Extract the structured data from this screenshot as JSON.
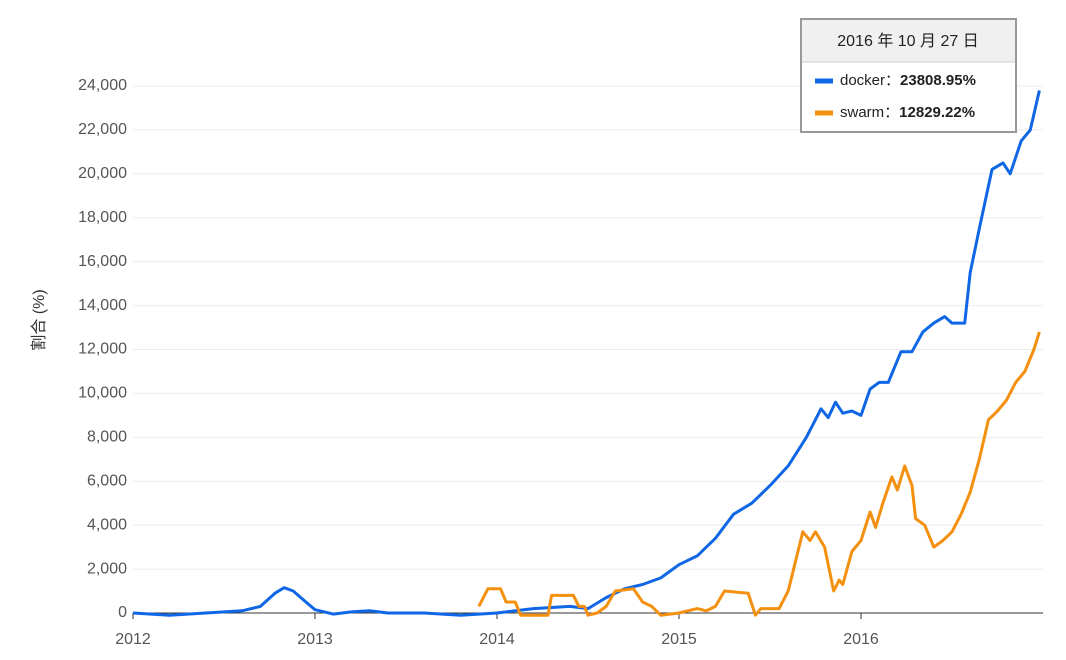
{
  "chart_data": {
    "type": "line",
    "y_label": "割合 (%)",
    "xlim": [
      2012,
      2017
    ],
    "xticks": [
      2012,
      2013,
      2014,
      2015,
      2016
    ],
    "ylim": [
      0,
      24000
    ],
    "yticks": [
      0,
      {
        "value": 2000,
        "label": "2,000"
      },
      {
        "value": 4000,
        "label": "4,000"
      },
      {
        "value": 6000,
        "label": "6,000"
      },
      {
        "value": 8000,
        "label": "8,000"
      },
      {
        "value": 10000,
        "label": "10,000"
      },
      {
        "value": 12000,
        "label": "12,000"
      },
      {
        "value": 14000,
        "label": "14,000"
      },
      {
        "value": 16000,
        "label": "16,000"
      },
      {
        "value": 18000,
        "label": "18,000"
      },
      {
        "value": 20000,
        "label": "20,000"
      },
      {
        "value": 22000,
        "label": "22,000"
      },
      {
        "value": 24000,
        "label": "24,000"
      }
    ],
    "grid": true,
    "series": [
      {
        "name": "docker",
        "color": "#0f67e6",
        "x": [
          2012.0,
          2012.2,
          2012.4,
          2012.6,
          2012.7,
          2012.78,
          2012.83,
          2012.88,
          2012.95,
          2013.0,
          2013.1,
          2013.2,
          2013.3,
          2013.4,
          2013.6,
          2013.8,
          2014.0,
          2014.2,
          2014.4,
          2014.5,
          2014.6,
          2014.7,
          2014.8,
          2014.9,
          2015.0,
          2015.1,
          2015.2,
          2015.3,
          2015.4,
          2015.5,
          2015.6,
          2015.7,
          2015.78,
          2015.82,
          2015.86,
          2015.9,
          2015.95,
          2016.0,
          2016.05,
          2016.1,
          2016.15,
          2016.22,
          2016.28,
          2016.34,
          2016.4,
          2016.46,
          2016.5,
          2016.57,
          2016.6,
          2016.65,
          2016.72,
          2016.78,
          2016.82,
          2016.88,
          2016.93,
          2016.98
        ],
        "values": [
          0,
          -100,
          0,
          100,
          300,
          900,
          1150,
          1000,
          500,
          150,
          -50,
          50,
          100,
          0,
          0,
          -100,
          0,
          200,
          300,
          200,
          700,
          1100,
          1300,
          1600,
          2200,
          2600,
          3400,
          4500,
          5000,
          5800,
          6700,
          8000,
          9300,
          8900,
          9600,
          9100,
          9200,
          9000,
          10200,
          10500,
          10500,
          11900,
          11900,
          12800,
          13200,
          13500,
          13200,
          13200,
          15500,
          17500,
          20200,
          20500,
          20000,
          21500,
          22000,
          23800
        ]
      },
      {
        "name": "swarm",
        "color": "#f4900f",
        "x": [
          2013.9,
          2013.95,
          2014.02,
          2014.05,
          2014.1,
          2014.13,
          2014.28,
          2014.3,
          2014.42,
          2014.45,
          2014.48,
          2014.5,
          2014.55,
          2014.6,
          2014.65,
          2014.75,
          2014.8,
          2014.85,
          2014.9,
          2015.0,
          2015.1,
          2015.15,
          2015.2,
          2015.25,
          2015.38,
          2015.42,
          2015.45,
          2015.55,
          2015.6,
          2015.68,
          2015.72,
          2015.75,
          2015.8,
          2015.85,
          2015.88,
          2015.9,
          2015.95,
          2016.0,
          2016.05,
          2016.08,
          2016.12,
          2016.17,
          2016.2,
          2016.24,
          2016.28,
          2016.3,
          2016.35,
          2016.4,
          2016.45,
          2016.5,
          2016.55,
          2016.6,
          2016.65,
          2016.7,
          2016.75,
          2016.8,
          2016.85,
          2016.9,
          2016.95,
          2016.98
        ],
        "values": [
          300,
          1100,
          1100,
          500,
          500,
          -100,
          -100,
          800,
          800,
          300,
          300,
          -100,
          0,
          300,
          1000,
          1100,
          500,
          300,
          -100,
          0,
          200,
          100,
          300,
          1000,
          900,
          -100,
          200,
          200,
          1000,
          3700,
          3300,
          3700,
          3000,
          1000,
          1500,
          1300,
          2800,
          3300,
          4600,
          3900,
          5000,
          6200,
          5600,
          6700,
          5800,
          4300,
          4000,
          3000,
          3300,
          3700,
          4500,
          5500,
          7000,
          8800,
          9200,
          9700,
          10500,
          11000,
          12000,
          12800
        ]
      }
    ],
    "tooltip": {
      "title": "2016 年 10 月 27 日",
      "items": [
        {
          "name": "docker：",
          "value": "23808.95%"
        },
        {
          "name": "swarm：",
          "value": "12829.22%"
        }
      ]
    }
  }
}
